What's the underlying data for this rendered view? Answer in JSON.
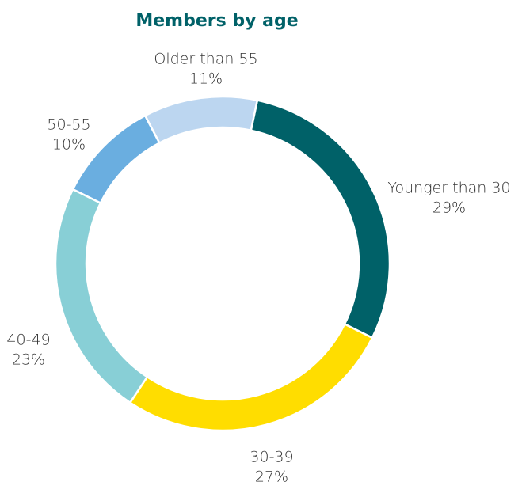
{
  "chart_data": {
    "type": "donut",
    "title": "Members by age",
    "categories": [
      "Younger than 30",
      "30-39",
      "40-49",
      "50-55",
      "Older than 55"
    ],
    "values": [
      29,
      27,
      23,
      10,
      11
    ],
    "value_labels": [
      "29%",
      "27%",
      "23%",
      "10%",
      "11%"
    ],
    "colors": [
      "#006168",
      "#ffdd00",
      "#88cfd6",
      "#6aaee0",
      "#bcd6f0"
    ]
  }
}
